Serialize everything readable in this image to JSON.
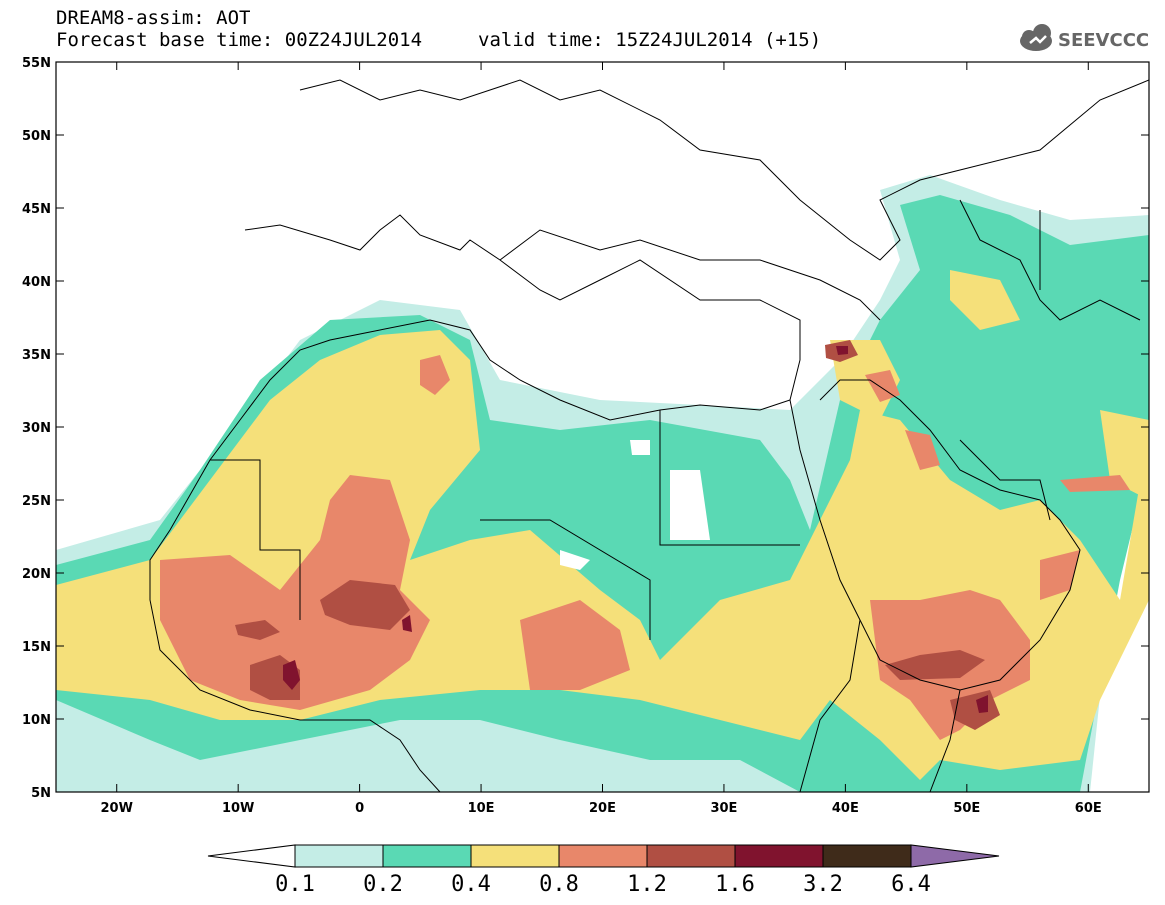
{
  "header": {
    "title": "DREAM8-assim: AOT",
    "base_time": "Forecast base time: 00Z24JUL2014",
    "valid_time": "valid time: 15Z24JUL2014 (+15)"
  },
  "logo": {
    "text": "SEEVCCC",
    "icon": "cloud-icon",
    "color": "#666666"
  },
  "map": {
    "lon_range": [
      -25,
      65
    ],
    "lat_range": [
      5,
      55
    ],
    "lon_ticks": [
      "20W",
      "10W",
      "0",
      "10E",
      "20E",
      "30E",
      "40E",
      "50E",
      "60E"
    ],
    "lat_ticks": [
      "55N",
      "50N",
      "45N",
      "40N",
      "35N",
      "30N",
      "25N",
      "20N",
      "15N",
      "10N",
      "5N"
    ]
  },
  "colorbar": {
    "levels": [
      "0.1",
      "0.2",
      "0.4",
      "0.8",
      "1.2",
      "1.6",
      "3.2",
      "6.4"
    ],
    "colors": [
      "#ffffff",
      "#c4ede6",
      "#5ad9b4",
      "#f5e07a",
      "#e8876a",
      "#b04f43",
      "#80132e",
      "#3f2b1a",
      "#8e6aa8"
    ]
  }
}
